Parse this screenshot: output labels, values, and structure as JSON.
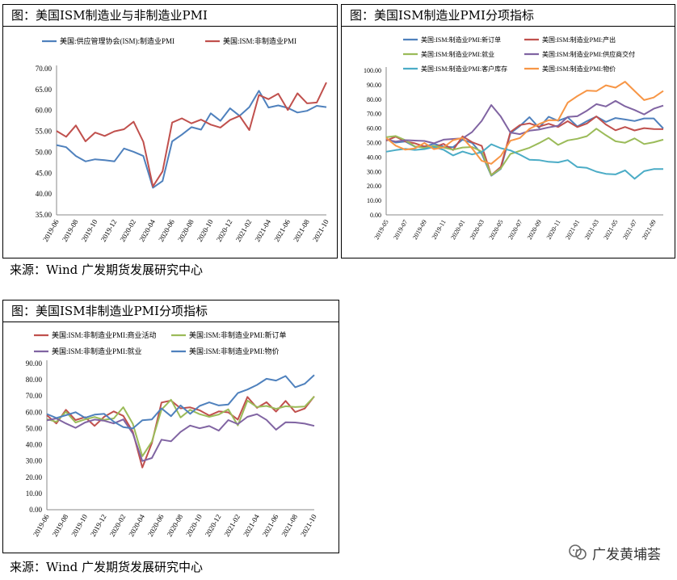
{
  "charts": [
    {
      "title": "图：美国ISM制造业与非制造业PMI",
      "chart_data": {
        "type": "line",
        "categories": [
          "2019-06",
          "2019-07",
          "2019-08",
          "2019-09",
          "2019-10",
          "2019-11",
          "2019-12",
          "2020-01",
          "2020-02",
          "2020-03",
          "2020-04",
          "2020-05",
          "2020-06",
          "2020-07",
          "2020-08",
          "2020-09",
          "2020-10",
          "2020-11",
          "2020-12",
          "2021-01",
          "2021-02",
          "2021-03",
          "2021-04",
          "2021-05",
          "2021-06",
          "2021-07",
          "2021-08",
          "2021-09",
          "2021-10"
        ],
        "tick_labels": [
          "2019-06",
          "2019-08",
          "2019-10",
          "2019-12",
          "2020-02",
          "2020-04",
          "2020-06",
          "2020-08",
          "2020-10",
          "2020-12",
          "2021-02",
          "2021-04",
          "2021-06",
          "2021-08",
          "2021-10"
        ],
        "ylim": [
          35,
          70
        ],
        "yticks": [
          "35.00",
          "40.00",
          "45.00",
          "50.00",
          "55.00",
          "60.00",
          "65.00",
          "70.00"
        ],
        "legend_position": "top",
        "series": [
          {
            "name": "美国:供应管理协会(ISM):制造业PMI",
            "color": "#4F81BD",
            "values": [
              51.7,
              51.2,
              49.1,
              47.8,
              48.3,
              48.1,
              47.8,
              50.9,
              50.1,
              49.1,
              41.5,
              43.1,
              52.6,
              54.2,
              56.0,
              55.4,
              59.3,
              57.5,
              60.5,
              58.7,
              60.8,
              64.7,
              60.7,
              61.2,
              60.6,
              59.5,
              59.9,
              61.1,
              60.8
            ]
          },
          {
            "name": "美国:ISM:非制造业PMI",
            "color": "#C0504D",
            "values": [
              55.1,
              53.7,
              56.4,
              52.6,
              54.7,
              53.9,
              55.0,
              55.5,
              57.3,
              52.5,
              41.8,
              45.4,
              57.1,
              58.1,
              56.9,
              57.8,
              56.6,
              55.9,
              57.7,
              58.7,
              55.3,
              63.7,
              62.7,
              64.0,
              60.1,
              64.1,
              61.7,
              61.9,
              66.7
            ]
          }
        ]
      }
    },
    {
      "title": "图：美国ISM制造业PMI分项指标",
      "chart_data": {
        "type": "line",
        "categories": [
          "2019-05",
          "2019-06",
          "2019-07",
          "2019-08",
          "2019-09",
          "2019-10",
          "2019-11",
          "2019-12",
          "2020-01",
          "2020-02",
          "2020-03",
          "2020-04",
          "2020-05",
          "2020-06",
          "2020-07",
          "2020-08",
          "2020-09",
          "2020-10",
          "2020-11",
          "2020-12",
          "2021-01",
          "2021-02",
          "2021-03",
          "2021-04",
          "2021-05",
          "2021-06",
          "2021-07",
          "2021-08",
          "2021-09",
          "2021-10"
        ],
        "tick_labels": [
          "2019-05",
          "2019-07",
          "2019-09",
          "2019-11",
          "2020-01",
          "2020-03",
          "2020-05",
          "2020-07",
          "2020-09",
          "2020-11",
          "2021-01",
          "2021-03",
          "2021-05",
          "2021-07",
          "2021-09"
        ],
        "ylim": [
          0,
          100
        ],
        "yticks": [
          "0.00",
          "10.00",
          "20.00",
          "30.00",
          "40.00",
          "50.00",
          "60.00",
          "70.00",
          "80.00",
          "90.00",
          "100.00"
        ],
        "legend_position": "top",
        "series": [
          {
            "name": "美国:ISM:制造业PMI:新订单",
            "color": "#4F81BD",
            "values": [
              52.7,
              50.0,
              50.8,
              47.2,
              47.3,
              49.1,
              47.2,
              46.8,
              52.0,
              49.8,
              42.2,
              27.1,
              31.8,
              56.4,
              61.5,
              67.6,
              60.2,
              67.9,
              65.1,
              67.5,
              61.1,
              64.8,
              68.0,
              64.3,
              67.0,
              66.0,
              64.9,
              66.7,
              66.7,
              59.8
            ]
          },
          {
            "name": "美国:ISM:制造业PMI:产出",
            "color": "#C0504D",
            "values": [
              51.3,
              54.1,
              50.8,
              49.5,
              47.3,
              46.7,
              49.1,
              44.8,
              54.3,
              50.3,
              47.7,
              27.5,
              33.2,
              57.3,
              62.1,
              63.3,
              61.0,
              63.0,
              60.8,
              64.8,
              60.7,
              63.2,
              68.1,
              62.5,
              58.5,
              60.8,
              58.4,
              60.0,
              59.4,
              59.3
            ]
          },
          {
            "name": "美国:ISM:制造业PMI:就业",
            "color": "#9BBB59",
            "values": [
              53.7,
              54.5,
              51.7,
              47.4,
              46.3,
              47.7,
              46.6,
              45.1,
              46.6,
              46.9,
              43.8,
              27.5,
              32.1,
              42.1,
              44.3,
              46.4,
              49.6,
              53.2,
              48.4,
              51.5,
              52.6,
              54.4,
              59.6,
              55.1,
              50.9,
              49.9,
              52.9,
              49.0,
              50.2,
              52.0
            ]
          },
          {
            "name": "美国:ISM:制造业PMI:供应商交付",
            "color": "#8064A2",
            "values": [
              52.0,
              50.7,
              51.7,
              51.4,
              51.1,
              49.5,
              52.0,
              52.5,
              52.9,
              57.3,
              65.0,
              76.0,
              68.0,
              56.9,
              55.8,
              58.2,
              59.0,
              60.5,
              61.7,
              67.7,
              68.2,
              72.0,
              76.6,
              75.0,
              78.8,
              75.1,
              72.5,
              69.5,
              73.4,
              75.6
            ]
          },
          {
            "name": "美国:ISM:制造业PMI:客户库存",
            "color": "#4BACC6",
            "values": [
              43.7,
              44.8,
              45.7,
              44.9,
              45.5,
              46.9,
              45.0,
              41.1,
              43.8,
              41.8,
              43.4,
              48.8,
              46.1,
              44.6,
              41.6,
              38.1,
              37.9,
              36.7,
              36.3,
              37.9,
              33.1,
              32.5,
              29.9,
              28.4,
              28.0,
              30.8,
              25.0,
              30.2,
              31.7,
              31.7
            ]
          },
          {
            "name": "美国:ISM:制造业PMI:物价",
            "color": "#F79646",
            "values": [
              53.2,
              47.9,
              45.1,
              46.0,
              49.7,
              45.5,
              46.7,
              51.7,
              53.3,
              45.9,
              37.4,
              35.3,
              40.8,
              51.3,
              53.2,
              59.5,
              62.8,
              65.5,
              65.4,
              77.6,
              82.1,
              86.0,
              85.6,
              89.6,
              88.0,
              92.1,
              85.7,
              79.4,
              81.2,
              85.7
            ]
          }
        ]
      }
    },
    {
      "title": "图：美国ISM非制造业PMI分项指标",
      "chart_data": {
        "type": "line",
        "categories": [
          "2019-06",
          "2019-07",
          "2019-08",
          "2019-09",
          "2019-10",
          "2019-11",
          "2019-12",
          "2020-01",
          "2020-02",
          "2020-03",
          "2020-04",
          "2020-05",
          "2020-06",
          "2020-07",
          "2020-08",
          "2020-09",
          "2020-10",
          "2020-11",
          "2020-12",
          "2021-01",
          "2021-02",
          "2021-03",
          "2021-04",
          "2021-05",
          "2021-06",
          "2021-07",
          "2021-08",
          "2021-09",
          "2021-10"
        ],
        "tick_labels": [
          "2019-06",
          "2019-08",
          "2019-10",
          "2019-12",
          "2020-02",
          "2020-04",
          "2020-06",
          "2020-08",
          "2020-10",
          "2020-12",
          "2021-02",
          "2021-04",
          "2021-06",
          "2021-08",
          "2021-10"
        ],
        "ylim": [
          0,
          90
        ],
        "yticks": [
          "0.00",
          "10.00",
          "20.00",
          "30.00",
          "40.00",
          "50.00",
          "60.00",
          "70.00",
          "80.00",
          "90.00"
        ],
        "legend_position": "top",
        "series": [
          {
            "name": "美国:ISM:非制造业PMI:商业活动",
            "color": "#C0504D",
            "values": [
              58.2,
              53.1,
              61.5,
              55.2,
              57.0,
              51.6,
              57.2,
              60.5,
              57.8,
              48.0,
              26.0,
              41.0,
              66.0,
              67.2,
              62.4,
              63.0,
              61.2,
              58.0,
              60.5,
              59.9,
              55.5,
              69.4,
              62.7,
              66.2,
              60.4,
              67.0,
              60.1,
              62.3,
              69.8
            ]
          },
          {
            "name": "美国:ISM:非制造业PMI:新订单",
            "color": "#9BBB59",
            "values": [
              55.8,
              54.1,
              60.3,
              53.7,
              55.6,
              57.1,
              55.3,
              56.2,
              63.1,
              52.9,
              32.9,
              41.9,
              61.6,
              67.7,
              56.8,
              61.5,
              58.8,
              57.2,
              58.6,
              61.8,
              51.9,
              67.2,
              63.2,
              63.9,
              62.1,
              63.7,
              63.2,
              63.5,
              69.7
            ]
          },
          {
            "name": "美国:ISM:非制造业PMI:就业",
            "color": "#8064A2",
            "values": [
              55.0,
              56.2,
              53.1,
              50.4,
              53.7,
              55.5,
              54.8,
              53.1,
              55.6,
              47.0,
              30.0,
              31.8,
              43.1,
              42.1,
              47.9,
              51.8,
              50.1,
              51.5,
              48.7,
              55.2,
              52.7,
              57.2,
              58.8,
              55.3,
              49.3,
              53.8,
              53.7,
              53.0,
              51.6
            ]
          },
          {
            "name": "美国:ISM:非制造业PMI:物价",
            "color": "#4F81BD",
            "values": [
              58.9,
              56.5,
              58.2,
              60.0,
              56.6,
              58.5,
              59.0,
              54.2,
              50.8,
              50.0,
              55.1,
              55.6,
              62.4,
              57.6,
              64.2,
              59.0,
              63.9,
              66.1,
              64.2,
              64.8,
              71.8,
              74.0,
              76.8,
              80.6,
              79.5,
              82.3,
              75.4,
              77.5,
              82.9
            ]
          }
        ]
      }
    }
  ],
  "source_texts": [
    "来源：Wind 广发期货发展研究中心",
    "来源：Wind 广发期货发展研究中心"
  ],
  "watermark": "广发黄埔荟"
}
